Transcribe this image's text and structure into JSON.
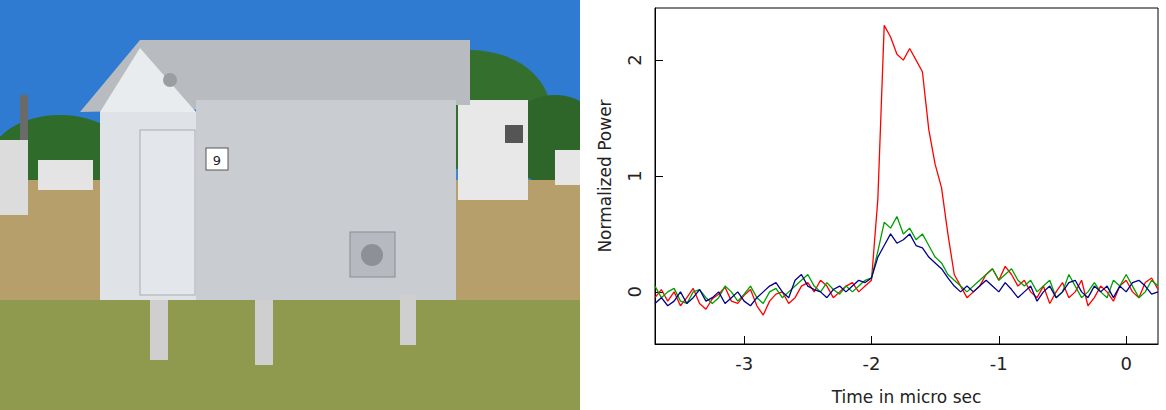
{
  "photo": {
    "door_number": "9"
  },
  "chart_data": {
    "type": "line",
    "x_label": "Time in micro sec",
    "y_label": "Normalized Power",
    "xlim": [
      -3.7,
      0.25
    ],
    "xticks": [
      -3,
      -2,
      -1,
      0
    ],
    "ylim": [
      -0.45,
      2.45
    ],
    "yticks": [
      0,
      1,
      2
    ],
    "grid": false,
    "x": [
      -3.7,
      -3.65,
      -3.6,
      -3.55,
      -3.5,
      -3.45,
      -3.4,
      -3.35,
      -3.3,
      -3.25,
      -3.2,
      -3.15,
      -3.1,
      -3.05,
      -3,
      -2.95,
      -2.9,
      -2.85,
      -2.8,
      -2.75,
      -2.7,
      -2.65,
      -2.6,
      -2.55,
      -2.5,
      -2.45,
      -2.4,
      -2.35,
      -2.3,
      -2.25,
      -2.2,
      -2.15,
      -2.1,
      -2.05,
      -2,
      -1.95,
      -1.9,
      -1.85,
      -1.8,
      -1.75,
      -1.7,
      -1.65,
      -1.6,
      -1.55,
      -1.5,
      -1.45,
      -1.4,
      -1.35,
      -1.3,
      -1.25,
      -1.2,
      -1.15,
      -1.1,
      -1.05,
      -1,
      -0.95,
      -0.9,
      -0.85,
      -0.8,
      -0.75,
      -0.7,
      -0.65,
      -0.6,
      -0.55,
      -0.5,
      -0.45,
      -0.4,
      -0.35,
      -0.3,
      -0.25,
      -0.2,
      -0.15,
      -0.1,
      -0.05,
      0,
      0.05,
      0.1,
      0.15,
      0.2,
      0.25
    ],
    "series": [
      {
        "color": "#ff0000",
        "values": [
          -0.05,
          0.02,
          -0.08,
          0.0,
          -0.12,
          -0.05,
          0.03,
          -0.1,
          -0.15,
          -0.06,
          -0.02,
          0.04,
          -0.08,
          -0.1,
          -0.03,
          0.02,
          -0.12,
          -0.2,
          -0.08,
          -0.02,
          0.0,
          -0.1,
          -0.05,
          0.05,
          0.08,
          0.0,
          0.1,
          0.05,
          -0.05,
          0.0,
          0.05,
          0.08,
          0.0,
          0.05,
          0.1,
          0.8,
          2.3,
          2.2,
          2.05,
          2.0,
          2.1,
          2.0,
          1.9,
          1.4,
          1.1,
          0.9,
          0.5,
          0.15,
          0.05,
          -0.05,
          0.0,
          0.05,
          0.15,
          0.2,
          0.1,
          0.22,
          0.15,
          0.05,
          0.1,
          0.0,
          -0.05,
          0.05,
          -0.1,
          0.0,
          0.08,
          -0.05,
          0.0,
          0.1,
          -0.12,
          -0.05,
          0.05,
          0.0,
          -0.08,
          0.05,
          0.1,
          0.0,
          -0.05,
          0.08,
          0.12,
          0.02
        ]
      },
      {
        "color": "#00a000",
        "values": [
          0.05,
          -0.05,
          0.0,
          0.03,
          -0.08,
          -0.1,
          0.0,
          0.02,
          -0.05,
          -0.1,
          -0.05,
          0.05,
          0.0,
          -0.08,
          -0.02,
          0.05,
          -0.05,
          -0.1,
          0.0,
          0.03,
          -0.05,
          0.0,
          0.05,
          0.1,
          0.15,
          0.05,
          0.0,
          0.08,
          0.02,
          -0.02,
          0.05,
          0.0,
          0.05,
          0.1,
          0.12,
          0.35,
          0.6,
          0.55,
          0.65,
          0.5,
          0.55,
          0.45,
          0.5,
          0.4,
          0.3,
          0.25,
          0.15,
          0.1,
          0.05,
          0.0,
          0.05,
          0.1,
          0.15,
          0.2,
          0.1,
          0.15,
          0.2,
          0.1,
          0.05,
          0.1,
          0.0,
          0.05,
          0.1,
          -0.05,
          0.0,
          0.15,
          0.05,
          -0.05,
          0.0,
          0.08,
          0.0,
          -0.05,
          0.1,
          0.05,
          0.15,
          0.05,
          -0.05,
          0.0,
          0.1,
          0.05
        ]
      },
      {
        "color": "#00008b",
        "values": [
          -0.1,
          -0.05,
          -0.12,
          -0.08,
          0.0,
          -0.1,
          -0.05,
          0.02,
          -0.08,
          -0.05,
          0.0,
          -0.1,
          -0.05,
          0.0,
          -0.08,
          -0.12,
          -0.05,
          0.0,
          0.05,
          0.08,
          0.0,
          -0.05,
          0.1,
          0.15,
          0.05,
          0.02,
          0.0,
          -0.05,
          0.02,
          0.05,
          0.0,
          0.05,
          0.1,
          0.08,
          0.12,
          0.3,
          0.4,
          0.5,
          0.42,
          0.45,
          0.5,
          0.4,
          0.38,
          0.3,
          0.25,
          0.2,
          0.12,
          0.05,
          0.0,
          0.05,
          0.0,
          0.05,
          0.1,
          0.05,
          0.0,
          0.08,
          0.02,
          -0.05,
          0.0,
          0.05,
          -0.08,
          0.0,
          0.05,
          -0.05,
          0.0,
          0.08,
          0.1,
          0.0,
          -0.05,
          0.05,
          0.0,
          0.05,
          -0.05,
          0.05,
          0.0,
          0.08,
          0.1,
          0.05,
          -0.02,
          0.0
        ]
      }
    ]
  }
}
